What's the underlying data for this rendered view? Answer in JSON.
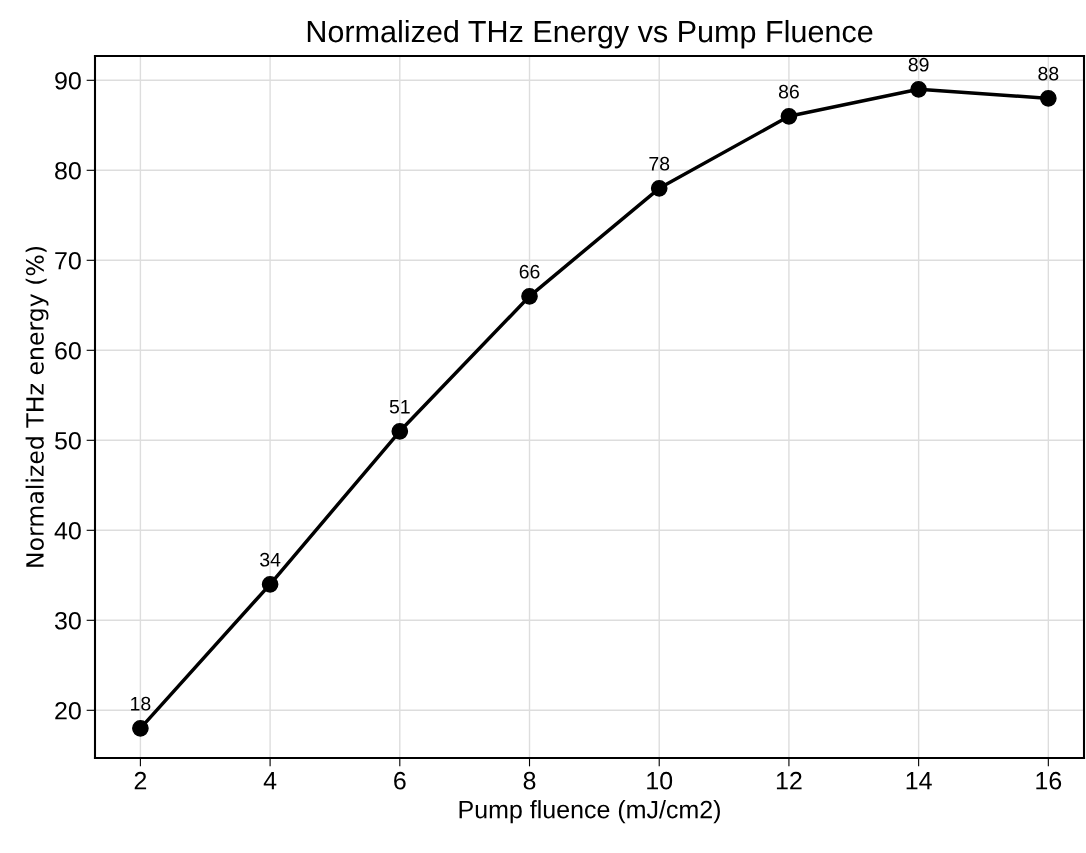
{
  "chart_data": {
    "type": "line",
    "title": "Normalized THz Energy vs Pump Fluence",
    "xlabel": "Pump fluence (mJ/cm2)",
    "ylabel": "Normalized THz energy (%)",
    "x": [
      2,
      4,
      6,
      8,
      10,
      12,
      14,
      16
    ],
    "series": [
      {
        "color": "#000000",
        "values": [
          18,
          34,
          51,
          66,
          78,
          86,
          89,
          88
        ]
      }
    ],
    "xlim": [
      1.3,
      16.55
    ],
    "ylim": [
      14.7,
      92.7
    ],
    "xticks": [
      2,
      4,
      6,
      8,
      10,
      12,
      14,
      16
    ],
    "yticks": [
      20,
      30,
      40,
      50,
      60,
      70,
      80,
      90
    ],
    "grid": true,
    "marker": "circle",
    "line_style": "solid",
    "data_labels": true
  }
}
